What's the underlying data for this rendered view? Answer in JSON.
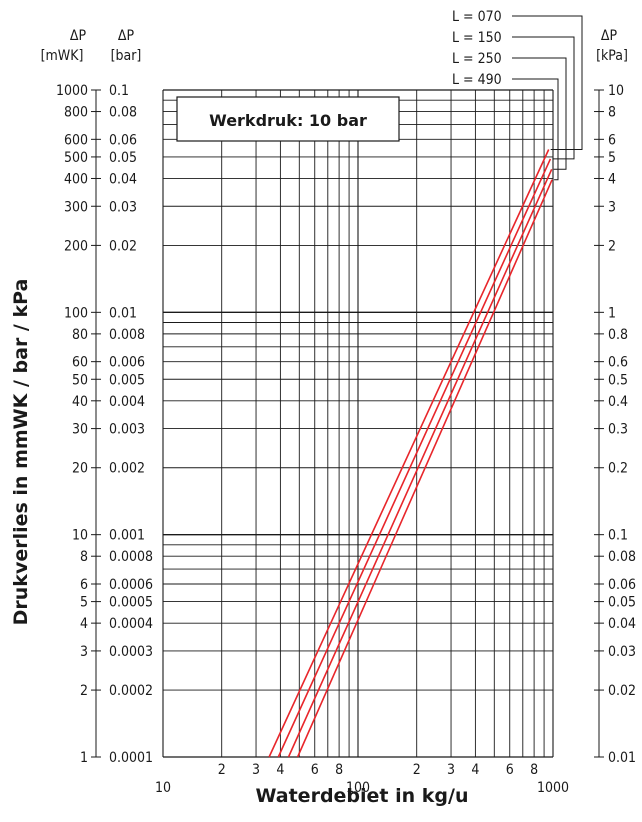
{
  "chart_data": {
    "type": "line",
    "scale": "log-log",
    "title": "",
    "xlabel": "Waterdebiet in kg/u",
    "ylabel": "Drukverlies in mmWK / bar / kPa",
    "annotation": "Werkdruk: 10 bar",
    "xlim": [
      10,
      1000
    ],
    "ylim": [
      1,
      1000
    ],
    "x_tick_labels": [
      {
        "value": 10,
        "label": "10"
      },
      {
        "value": 20,
        "label": "2"
      },
      {
        "value": 30,
        "label": "3"
      },
      {
        "value": 40,
        "label": "4"
      },
      {
        "value": 60,
        "label": "6"
      },
      {
        "value": 80,
        "label": "8"
      },
      {
        "value": 100,
        "label": "100"
      },
      {
        "value": 200,
        "label": "2"
      },
      {
        "value": 300,
        "label": "3"
      },
      {
        "value": 400,
        "label": "4"
      },
      {
        "value": 600,
        "label": "6"
      },
      {
        "value": 800,
        "label": "8"
      },
      {
        "value": 1000,
        "label": "1000"
      }
    ],
    "axes": [
      {
        "symbol": "ΔP",
        "unit": "[mWK]",
        "side": "left-outer",
        "ticks": [
          {
            "value": 1000,
            "label": "1000"
          },
          {
            "value": 800,
            "label": "800"
          },
          {
            "value": 600,
            "label": "600"
          },
          {
            "value": 500,
            "label": "500"
          },
          {
            "value": 400,
            "label": "400"
          },
          {
            "value": 300,
            "label": "300"
          },
          {
            "value": 200,
            "label": "200"
          },
          {
            "value": 100,
            "label": "100"
          },
          {
            "value": 80,
            "label": "80"
          },
          {
            "value": 60,
            "label": "60"
          },
          {
            "value": 50,
            "label": "50"
          },
          {
            "value": 40,
            "label": "40"
          },
          {
            "value": 30,
            "label": "30"
          },
          {
            "value": 20,
            "label": "20"
          },
          {
            "value": 10,
            "label": "10"
          },
          {
            "value": 8,
            "label": "8"
          },
          {
            "value": 6,
            "label": "6"
          },
          {
            "value": 5,
            "label": "5"
          },
          {
            "value": 4,
            "label": "4"
          },
          {
            "value": 3,
            "label": "3"
          },
          {
            "value": 2,
            "label": "2"
          },
          {
            "value": 1,
            "label": "1"
          }
        ]
      },
      {
        "symbol": "ΔP",
        "unit": "[bar]",
        "side": "left-inner",
        "ticks": [
          {
            "value": 1000,
            "label": "0.1"
          },
          {
            "value": 800,
            "label": "0.08"
          },
          {
            "value": 600,
            "label": "0.06"
          },
          {
            "value": 500,
            "label": "0.05"
          },
          {
            "value": 400,
            "label": "0.04"
          },
          {
            "value": 300,
            "label": "0.03"
          },
          {
            "value": 200,
            "label": "0.02"
          },
          {
            "value": 100,
            "label": "0.01"
          },
          {
            "value": 80,
            "label": "0.008"
          },
          {
            "value": 60,
            "label": "0.006"
          },
          {
            "value": 50,
            "label": "0.005"
          },
          {
            "value": 40,
            "label": "0.004"
          },
          {
            "value": 30,
            "label": "0.003"
          },
          {
            "value": 20,
            "label": "0.002"
          },
          {
            "value": 10,
            "label": "0.001"
          },
          {
            "value": 8,
            "label": "0.0008"
          },
          {
            "value": 6,
            "label": "0.0006"
          },
          {
            "value": 5,
            "label": "0.0005"
          },
          {
            "value": 4,
            "label": "0.0004"
          },
          {
            "value": 3,
            "label": "0.0003"
          },
          {
            "value": 2,
            "label": "0.0002"
          },
          {
            "value": 1,
            "label": "0.0001"
          }
        ]
      },
      {
        "symbol": "ΔP",
        "unit": "[kPa]",
        "side": "right",
        "ticks": [
          {
            "value": 1000,
            "label": "10"
          },
          {
            "value": 800,
            "label": "8"
          },
          {
            "value": 600,
            "label": "6"
          },
          {
            "value": 500,
            "label": "5"
          },
          {
            "value": 400,
            "label": "4"
          },
          {
            "value": 300,
            "label": "3"
          },
          {
            "value": 200,
            "label": "2"
          },
          {
            "value": 100,
            "label": "1"
          },
          {
            "value": 80,
            "label": "0.8"
          },
          {
            "value": 60,
            "label": "0.6"
          },
          {
            "value": 50,
            "label": "0.5"
          },
          {
            "value": 40,
            "label": "0.4"
          },
          {
            "value": 30,
            "label": "0.3"
          },
          {
            "value": 20,
            "label": "0.2"
          },
          {
            "value": 10,
            "label": "0.1"
          },
          {
            "value": 8,
            "label": "0.08"
          },
          {
            "value": 6,
            "label": "0.06"
          },
          {
            "value": 5,
            "label": "0.05"
          },
          {
            "value": 4,
            "label": "0.04"
          },
          {
            "value": 3,
            "label": "0.03"
          },
          {
            "value": 2,
            "label": "0.02"
          },
          {
            "value": 1,
            "label": "0.01"
          }
        ]
      }
    ],
    "series": [
      {
        "name": "L = 070",
        "x": [
          35,
          950
        ],
        "y": [
          1,
          540
        ]
      },
      {
        "name": "L = 150",
        "x": [
          39,
          970
        ],
        "y": [
          1,
          490
        ]
      },
      {
        "name": "L = 250",
        "x": [
          44,
          985
        ],
        "y": [
          1,
          440
        ]
      },
      {
        "name": "L = 490",
        "x": [
          49,
          990
        ],
        "y": [
          1,
          395
        ]
      }
    ],
    "grid": true,
    "legend": "top-right",
    "colors": {
      "line": "#e8262b",
      "grid": "#1a1a1a",
      "text": "#1a1a1a"
    }
  }
}
